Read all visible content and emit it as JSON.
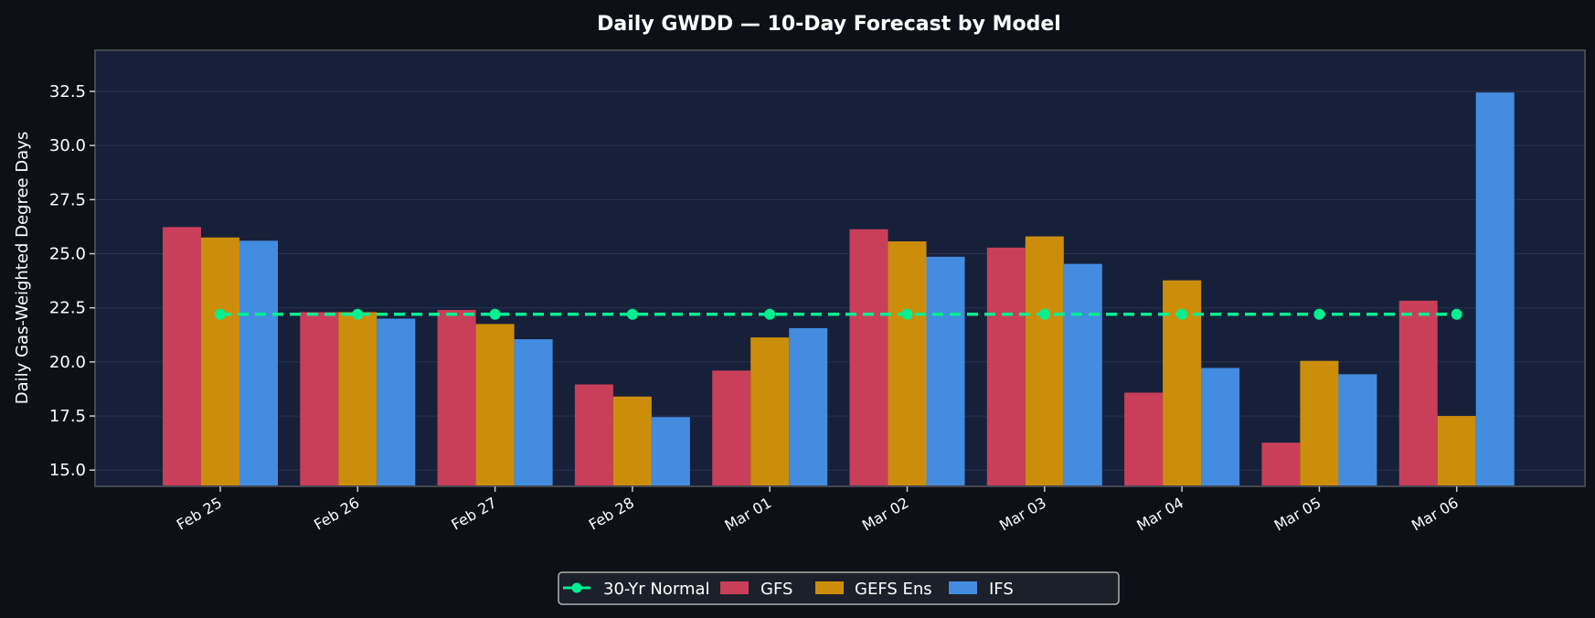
{
  "chart_data": {
    "type": "bar",
    "title": "Daily GWDD — 10-Day Forecast by Model",
    "xlabel": "",
    "ylabel": "Daily Gas-Weighted Degree Days",
    "categories": [
      "Feb 25",
      "Feb 26",
      "Feb 27",
      "Feb 28",
      "Mar 01",
      "Mar 02",
      "Mar 03",
      "Mar 04",
      "Mar 05",
      "Mar 06"
    ],
    "ylim": [
      14.25,
      34.4
    ],
    "yticks": [
      "15.0",
      "17.5",
      "20.0",
      "22.5",
      "25.0",
      "27.5",
      "30.0",
      "32.5"
    ],
    "grid": true,
    "legend_position": "bottom-center",
    "series": [
      {
        "name": "GFS",
        "kind": "bar",
        "color": "#c93f5a",
        "values": [
          26.23,
          22.3,
          22.4,
          18.96,
          19.6,
          26.13,
          25.28,
          18.58,
          16.27,
          22.83
        ]
      },
      {
        "name": "GEFS Ens",
        "kind": "bar",
        "color": "#cc8e0a",
        "values": [
          25.75,
          22.3,
          21.75,
          18.4,
          21.13,
          25.57,
          25.8,
          23.77,
          20.05,
          17.5
        ]
      },
      {
        "name": "IFS",
        "kind": "bar",
        "color": "#438ce0",
        "values": [
          25.6,
          22.0,
          21.05,
          17.45,
          21.56,
          24.86,
          24.53,
          19.72,
          19.43,
          32.45
        ]
      },
      {
        "name": "30-Yr Normal",
        "kind": "line",
        "color": "#00f090",
        "values": [
          22.2,
          22.2,
          22.2,
          22.2,
          22.2,
          22.2,
          22.2,
          22.2,
          22.2,
          22.2
        ]
      }
    ],
    "legend": [
      "30-Yr Normal",
      "GFS",
      "GEFS Ens",
      "IFS"
    ]
  }
}
